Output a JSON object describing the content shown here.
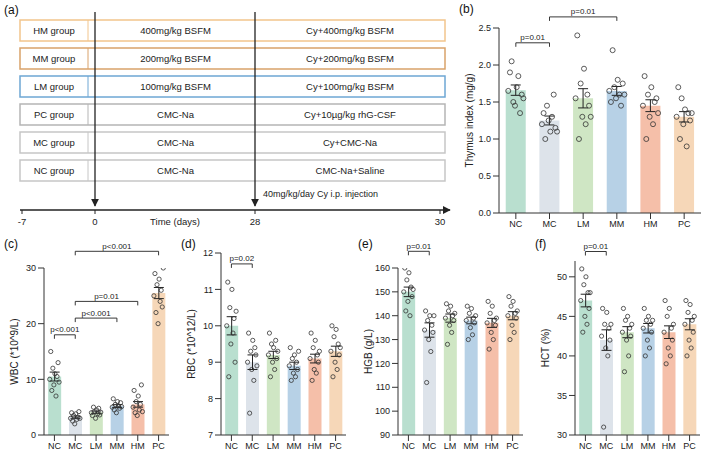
{
  "diagram": {
    "panel": "(a)",
    "groups": [
      {
        "name": "HM group",
        "phase1": "400mg/kg BSFM",
        "phase2": "Cy+400mg/kg BSFM",
        "color": "#f2c58c"
      },
      {
        "name": "MM group",
        "phase1": "200mg/kg BSFM",
        "phase2": "Cy+200mg/kg BSFM",
        "color": "#d9a26a"
      },
      {
        "name": "LM group",
        "phase1": "100mg/kg BSFM",
        "phase2": "Cy+100mg/kg BSFM",
        "color": "#6ea7d4"
      },
      {
        "name": "PC group",
        "phase1": "CMC-Na",
        "phase2": "Cy+10µg/kg rhG-CSF",
        "color": "#b5b5b5"
      },
      {
        "name": "MC group",
        "phase1": "CMC-Na",
        "phase2": "Cy+CMC-Na",
        "color": "#c6c6c6"
      },
      {
        "name": "NC group",
        "phase1": "CMC-Na",
        "phase2": "CMC-Na+Saline",
        "color": "#c6c6c6"
      }
    ],
    "note": "40mg/kg/day Cy i.p. injection",
    "timeline": {
      "ticks": [
        -7,
        0,
        28,
        30
      ],
      "label": "Time (days)"
    }
  },
  "chart_data": [
    {
      "type": "bar",
      "panel": "(b)",
      "y_label": "Thymus index (mg/g)",
      "categories": [
        "NC",
        "MC",
        "LM",
        "MM",
        "HM",
        "PC"
      ],
      "values": [
        1.66,
        1.25,
        1.55,
        1.65,
        1.45,
        1.3
      ],
      "errors": [
        0.07,
        0.06,
        0.13,
        0.06,
        0.08,
        0.07
      ],
      "points": [
        [
          1.65,
          1.9,
          2.05,
          1.5,
          1.45,
          1.7,
          1.85,
          1.35,
          1.6,
          1.55
        ],
        [
          1.2,
          1.35,
          1.0,
          1.45,
          1.25,
          1.1,
          1.3,
          1.6,
          1.15,
          1.1
        ],
        [
          1.55,
          2.4,
          1.0,
          1.75,
          1.3,
          1.95,
          1.2,
          1.6,
          1.45,
          1.3
        ],
        [
          1.65,
          1.5,
          2.2,
          1.7,
          1.55,
          1.8,
          1.6,
          1.45,
          1.75,
          1.6
        ],
        [
          1.45,
          1.85,
          1.0,
          1.6,
          1.3,
          1.7,
          1.2,
          1.5,
          1.55,
          1.35
        ],
        [
          1.3,
          1.7,
          1.0,
          1.55,
          1.2,
          1.4,
          0.9,
          1.35,
          1.25,
          1.35
        ]
      ],
      "colors": [
        "#b9dfcf",
        "#dde3ea",
        "#cfe6c4",
        "#b7d1e6",
        "#f5bfa9",
        "#f6d7b8"
      ],
      "ylim": [
        0,
        2.5
      ],
      "yticks": [
        {
          "value": 0,
          "label": "0.0"
        },
        0.5,
        {
          "value": 1,
          "label": "1.0"
        },
        1.5,
        {
          "value": 2,
          "label": "2.0"
        },
        2.5
      ],
      "comparisons": [
        {
          "from": "NC",
          "to": "MC",
          "label": "p=0.01"
        },
        {
          "from": "MC",
          "to": "MM",
          "label": "p=0.01"
        }
      ]
    },
    {
      "type": "bar",
      "panel": "(c)",
      "y_label": "WBC (*10^9/L)",
      "categories": [
        "NC",
        "MC",
        "LM",
        "MM",
        "HM",
        "PC"
      ],
      "values": [
        10.5,
        3.2,
        4.1,
        5.2,
        5.5,
        25.5
      ],
      "errors": [
        0.8,
        0.2,
        0.2,
        0.25,
        0.5,
        1.0
      ],
      "points": [
        [
          10,
          15,
          8,
          12,
          9,
          11,
          7,
          10.5,
          13,
          9.5
        ],
        [
          3,
          4,
          2.5,
          3.5,
          2,
          3.8,
          2.8,
          3.2,
          4.2,
          3
        ],
        [
          4,
          3.5,
          5,
          4.2,
          3,
          4.5,
          3.8,
          4.8,
          3.6,
          4.1
        ],
        [
          5,
          6.5,
          4.5,
          5.5,
          4,
          6,
          5.2,
          4.8,
          5.8,
          5.1
        ],
        [
          5,
          8,
          4,
          6,
          3.5,
          7,
          4.5,
          5.5,
          9,
          4.2
        ],
        [
          25,
          29,
          22,
          27,
          20,
          28,
          24,
          26,
          23,
          30
        ]
      ],
      "colors": [
        "#b9dfcf",
        "#dde3ea",
        "#cfe6c4",
        "#b7d1e6",
        "#f5bfa9",
        "#f6d7b8"
      ],
      "ylim": [
        0,
        30
      ],
      "yticks": [
        0,
        10,
        20,
        30
      ],
      "comparisons": [
        {
          "from": "NC",
          "to": "MC",
          "label": "p<0.001"
        },
        {
          "from": "MC",
          "to": "MM",
          "label": "p<0.001"
        },
        {
          "from": "MC",
          "to": "HM",
          "label": "p=0.01"
        },
        {
          "from": "MC",
          "to": "PC",
          "label": "p<0.001"
        }
      ]
    },
    {
      "type": "bar",
      "panel": "(d)",
      "y_label": "RBC (*10^12/L)",
      "categories": [
        "NC",
        "MC",
        "LM",
        "MM",
        "HM",
        "PC"
      ],
      "values": [
        10.0,
        9.0,
        9.2,
        8.9,
        9.1,
        9.3
      ],
      "errors": [
        0.25,
        0.2,
        0.1,
        0.1,
        0.12,
        0.14
      ],
      "points": [
        [
          10,
          11.2,
          8.6,
          10.5,
          9.5,
          11,
          9.8,
          10.2,
          9,
          10.4
        ],
        [
          9,
          9.8,
          7.6,
          9.3,
          8.8,
          9.6,
          8.5,
          9.4,
          9.2,
          8.9
        ],
        [
          9.2,
          9.8,
          8.6,
          9.5,
          9,
          9.4,
          8.8,
          9.6,
          9.1,
          9.3
        ],
        [
          8.9,
          9.4,
          8.5,
          9.1,
          8.7,
          9.2,
          8.6,
          9.0,
          8.8,
          9.3
        ],
        [
          9.1,
          9.8,
          8.5,
          9.4,
          8.8,
          9.6,
          8.7,
          9.2,
          9.0,
          9.3
        ],
        [
          9.3,
          10,
          8.6,
          9.7,
          9.0,
          9.9,
          8.8,
          9.5,
          9.2,
          9.4
        ]
      ],
      "colors": [
        "#b9dfcf",
        "#dde3ea",
        "#cfe6c4",
        "#b7d1e6",
        "#f5bfa9",
        "#f6d7b8"
      ],
      "ylim": [
        7,
        12
      ],
      "yticks": [
        7,
        8,
        9,
        10,
        11,
        12
      ],
      "comparisons": [
        {
          "from": "NC",
          "to": "MC",
          "label": "p=0.02"
        }
      ]
    },
    {
      "type": "bar",
      "panel": "(e)",
      "y_label": "HGB (g/L)",
      "categories": [
        "NC",
        "MC",
        "LM",
        "MM",
        "HM",
        "PC"
      ],
      "values": [
        150,
        134,
        139,
        138,
        137,
        140
      ],
      "errors": [
        2,
        3,
        1.7,
        1.4,
        1.9,
        1.7
      ],
      "points": [
        [
          150,
          160,
          142,
          155,
          146,
          158,
          140,
          152,
          148,
          151
        ],
        [
          134,
          142,
          112,
          138,
          130,
          140,
          125,
          136,
          133,
          140
        ],
        [
          139,
          145,
          128,
          142,
          136,
          144,
          133,
          140,
          138,
          141
        ],
        [
          138,
          144,
          130,
          141,
          135,
          143,
          132,
          139,
          137,
          140
        ],
        [
          137,
          146,
          126,
          141,
          133,
          144,
          130,
          138,
          136,
          139
        ],
        [
          140,
          148,
          130,
          144,
          136,
          146,
          133,
          141,
          139,
          142
        ]
      ],
      "colors": [
        "#b9dfcf",
        "#dde3ea",
        "#cfe6c4",
        "#b7d1e6",
        "#f5bfa9",
        "#f6d7b8"
      ],
      "ylim": [
        90,
        160
      ],
      "yticks": [
        90,
        100,
        110,
        120,
        130,
        140,
        150,
        160
      ],
      "comparisons": [
        {
          "from": "NC",
          "to": "MC",
          "label": "p=0.01"
        }
      ]
    },
    {
      "type": "bar",
      "panel": "(f)",
      "y_label": "HCT (%)",
      "categories": [
        "NC",
        "MC",
        "LM",
        "MM",
        "HM",
        "PC"
      ],
      "values": [
        47,
        42,
        43,
        43.5,
        43,
        44
      ],
      "errors": [
        0.8,
        1.3,
        0.7,
        0.6,
        0.8,
        0.7
      ],
      "points": [
        [
          47,
          51,
          43,
          49,
          45,
          50,
          44,
          48,
          46,
          48
        ],
        [
          42.5,
          46,
          31,
          44,
          41,
          45.5,
          40,
          43.5,
          42,
          44
        ],
        [
          43,
          46,
          38,
          44.5,
          42,
          45,
          40,
          43.5,
          42.5,
          44
        ],
        [
          43.5,
          46,
          40,
          44.5,
          42,
          45,
          41,
          44,
          43,
          44.5
        ],
        [
          43,
          47,
          39,
          45,
          41,
          46,
          40,
          43.5,
          42,
          44
        ],
        [
          44,
          47,
          40,
          45.5,
          42,
          46.5,
          41,
          44.5,
          43,
          45
        ]
      ],
      "colors": [
        "#b9dfcf",
        "#dde3ea",
        "#cfe6c4",
        "#b7d1e6",
        "#f5bfa9",
        "#f6d7b8"
      ],
      "ylim": [
        30,
        52
      ],
      "yticks": [
        30,
        35,
        40,
        45,
        50
      ],
      "comparisons": [
        {
          "from": "NC",
          "to": "MC",
          "label": "p=0.01"
        }
      ]
    }
  ]
}
